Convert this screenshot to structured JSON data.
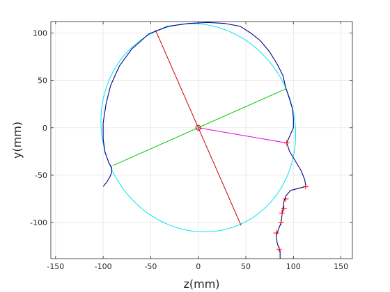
{
  "chart_data": {
    "type": "line",
    "title": "",
    "xlabel": "z(mm)",
    "ylabel": "y(mm)",
    "xlim": [
      -155,
      162
    ],
    "ylim": [
      -138,
      112
    ],
    "xticks": [
      -150,
      -100,
      -50,
      0,
      50,
      100,
      150
    ],
    "yticks": [
      -100,
      -50,
      0,
      50,
      100
    ],
    "grid": true,
    "equal_aspect": true,
    "colors": {
      "contour": "#00008b",
      "ellipse": "#00e5ee",
      "major_axis": "#cc0000",
      "minor_axis": "#00cc00",
      "radius": "#e000e0",
      "markers": "#ff0000",
      "center": "#cc0000"
    },
    "ellipse": {
      "center": [
        0,
        0
      ],
      "semi_major": 111,
      "semi_minor": 101,
      "major_angle_deg": 111
    },
    "center_point": [
      0,
      0
    ],
    "major_axis_line": [
      [
        -45,
        103
      ],
      [
        45,
        -103
      ]
    ],
    "minor_axis_line": [
      [
        -90,
        -40
      ],
      [
        92,
        41
      ]
    ],
    "radius_line": [
      [
        0,
        0
      ],
      [
        93,
        -16
      ]
    ],
    "contour": [
      [
        -100,
        -62
      ],
      [
        -96,
        -57
      ],
      [
        -93,
        -52
      ],
      [
        -91,
        -47
      ],
      [
        -91,
        -42
      ],
      [
        -94,
        -37
      ],
      [
        -98,
        -26
      ],
      [
        -100,
        -12
      ],
      [
        -100,
        5
      ],
      [
        -97,
        25
      ],
      [
        -92,
        45
      ],
      [
        -83,
        65
      ],
      [
        -70,
        83
      ],
      [
        -52,
        99
      ],
      [
        -32,
        107
      ],
      [
        -10,
        110
      ],
      [
        10,
        111
      ],
      [
        28,
        110
      ],
      [
        44,
        107
      ],
      [
        55,
        100
      ],
      [
        65,
        92
      ],
      [
        75,
        80
      ],
      [
        83,
        67
      ],
      [
        89,
        55
      ],
      [
        92,
        42
      ],
      [
        96,
        30
      ],
      [
        99,
        20
      ],
      [
        100,
        10
      ],
      [
        100,
        0
      ],
      [
        96,
        -9
      ],
      [
        93,
        -16
      ],
      [
        96,
        -25
      ],
      [
        102,
        -35
      ],
      [
        108,
        -45
      ],
      [
        112,
        -55
      ],
      [
        113,
        -62
      ],
      [
        105,
        -64
      ],
      [
        97,
        -66
      ],
      [
        92,
        -72
      ],
      [
        90,
        -78
      ],
      [
        89,
        -85
      ],
      [
        88,
        -92
      ],
      [
        87,
        -100
      ],
      [
        84,
        -108
      ],
      [
        82,
        -114
      ],
      [
        83,
        -122
      ],
      [
        86,
        -130
      ],
      [
        86,
        -138
      ]
    ],
    "markers": [
      [
        93,
        -16
      ],
      [
        113,
        -62
      ],
      [
        92,
        -75
      ],
      [
        90,
        -85
      ],
      [
        88,
        -90
      ],
      [
        87,
        -100
      ],
      [
        82,
        -111
      ],
      [
        85,
        -128
      ]
    ]
  }
}
